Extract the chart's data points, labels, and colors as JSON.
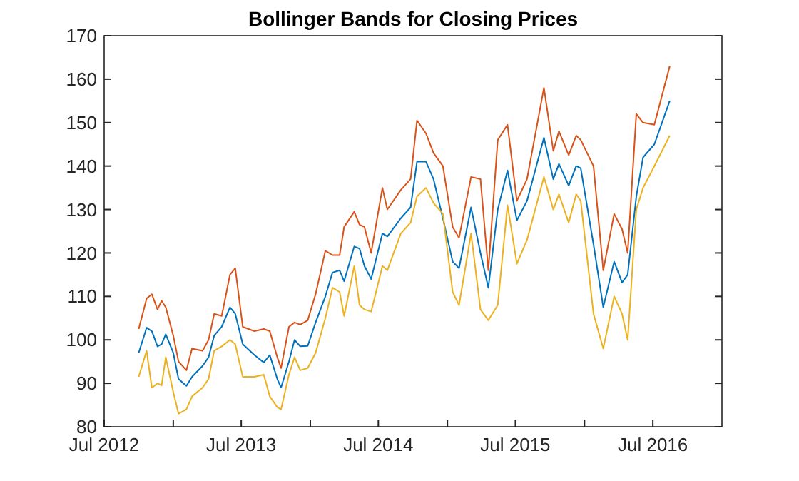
{
  "chart_data": {
    "type": "line",
    "title": "Bollinger Bands for Closing Prices",
    "x": [
      "2012-10-01",
      "2012-10-22",
      "2012-11-05",
      "2012-11-20",
      "2012-12-01",
      "2012-12-12",
      "2013-01-01",
      "2013-01-15",
      "2013-02-05",
      "2013-02-20",
      "2013-03-20",
      "2013-04-05",
      "2013-04-20",
      "2013-05-10",
      "2013-06-01",
      "2013-06-15",
      "2013-07-05",
      "2013-08-05",
      "2013-08-30",
      "2013-09-15",
      "2013-10-05",
      "2013-10-15",
      "2013-11-05",
      "2013-11-20",
      "2013-12-05",
      "2013-12-25",
      "2014-01-15",
      "2014-02-10",
      "2014-03-01",
      "2014-03-20",
      "2014-04-01",
      "2014-04-28",
      "2014-05-12",
      "2014-05-25",
      "2014-06-12",
      "2014-07-12",
      "2014-07-25",
      "2014-08-30",
      "2014-09-25",
      "2014-10-12",
      "2014-11-05",
      "2014-11-25",
      "2014-12-20",
      "2015-01-15",
      "2015-02-01",
      "2015-03-05",
      "2015-03-30",
      "2015-04-20",
      "2015-05-15",
      "2015-06-10",
      "2015-07-05",
      "2015-08-01",
      "2015-09-15",
      "2015-10-10",
      "2015-10-25",
      "2015-11-20",
      "2015-12-10",
      "2015-12-22",
      "2016-01-25",
      "2016-02-20",
      "2016-03-20",
      "2016-04-10",
      "2016-04-25",
      "2016-05-18",
      "2016-06-05",
      "2016-07-05",
      "2016-08-15"
    ],
    "series": [
      {
        "color": "#d95319",
        "values": [
          102.5,
          109.5,
          110.5,
          107,
          109,
          107.5,
          101,
          95,
          93,
          98,
          97.5,
          100,
          106,
          105.5,
          115,
          116.5,
          103,
          102,
          102.5,
          102,
          96,
          93.5,
          103,
          104,
          103.5,
          104.5,
          110.5,
          120.5,
          119.5,
          119.5,
          126,
          129.5,
          126.5,
          126,
          120,
          135,
          130,
          134.5,
          137,
          150.5,
          147.5,
          143,
          140,
          126,
          123.5,
          137.5,
          137,
          116,
          146,
          149.5,
          132,
          137,
          158,
          143.5,
          148,
          142.5,
          147,
          146,
          140,
          116,
          129,
          125.5,
          120,
          152,
          150,
          149.5,
          163
        ]
      },
      {
        "color": "#0072bd",
        "values": [
          97,
          102.8,
          102,
          98.5,
          99,
          101.3,
          97,
          91,
          89.4,
          91.5,
          94,
          96,
          101,
          103,
          107.5,
          106,
          99,
          96.5,
          94.8,
          96.5,
          91,
          89,
          95,
          100,
          98.5,
          98.6,
          104,
          110,
          115.5,
          116,
          113.5,
          121.5,
          121,
          117,
          114,
          124.5,
          123.8,
          128,
          130.5,
          141,
          141,
          137,
          128,
          118,
          116.5,
          130.5,
          120,
          112,
          130,
          139,
          127.5,
          132,
          146.5,
          137,
          140.5,
          135.5,
          140,
          139.5,
          122,
          107.5,
          118,
          113.2,
          115,
          133,
          142,
          145,
          155
        ]
      },
      {
        "color": "#edb120",
        "values": [
          91.5,
          97.5,
          89,
          90,
          89.5,
          96,
          88,
          83,
          84,
          87,
          89,
          91,
          97.5,
          98.5,
          100,
          99,
          91.5,
          91.5,
          92,
          87,
          84.5,
          84,
          92,
          96,
          93,
          93.5,
          97,
          105,
          112,
          111,
          105.5,
          117,
          108,
          107,
          106.5,
          117,
          116,
          124.5,
          127,
          133,
          135,
          131.5,
          129,
          111,
          108,
          124.5,
          107,
          104.5,
          108,
          131,
          117.5,
          123,
          137.5,
          130,
          133.5,
          127,
          133.5,
          132,
          106,
          98,
          110,
          106,
          100,
          130,
          135,
          140,
          147
        ]
      }
    ],
    "xlim": [
      "2012-07-01",
      "2017-01-01"
    ],
    "xticks": [
      {
        "value": "2012-07-01",
        "label": "Jul 2012"
      },
      {
        "value": "2013-01-01",
        "label": null
      },
      {
        "value": "2013-07-01",
        "label": "Jul 2013"
      },
      {
        "value": "2014-01-01",
        "label": null
      },
      {
        "value": "2014-07-01",
        "label": "Jul 2014"
      },
      {
        "value": "2015-01-01",
        "label": null
      },
      {
        "value": "2015-07-01",
        "label": "Jul 2015"
      },
      {
        "value": "2016-01-01",
        "label": null
      },
      {
        "value": "2016-07-01",
        "label": "Jul 2016"
      }
    ],
    "ylim": [
      80,
      170
    ],
    "yticks": [
      80,
      90,
      100,
      110,
      120,
      130,
      140,
      150,
      160,
      170
    ],
    "grid": false
  }
}
